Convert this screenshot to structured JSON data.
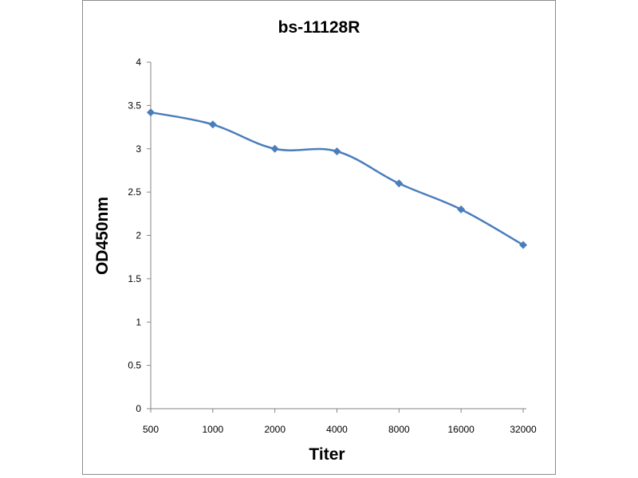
{
  "chart_data": {
    "type": "line",
    "title": "bs-11128R",
    "xlabel": "Titer",
    "ylabel": "OD450nm",
    "categories": [
      "500",
      "1000",
      "2000",
      "4000",
      "8000",
      "16000",
      "32000"
    ],
    "series": [
      {
        "values": [
          3.42,
          3.28,
          3.0,
          2.97,
          2.6,
          2.3,
          1.89
        ]
      }
    ],
    "ylim": [
      0,
      4
    ],
    "yticks": [
      "0",
      "0.5",
      "1",
      "1.5",
      "2",
      "2.5",
      "3",
      "3.5",
      "4"
    ],
    "grid": false,
    "legend": "none",
    "colors": {
      "series": "#4a7ebb",
      "axis": "#868686",
      "frame": "#8c8c8c"
    }
  }
}
